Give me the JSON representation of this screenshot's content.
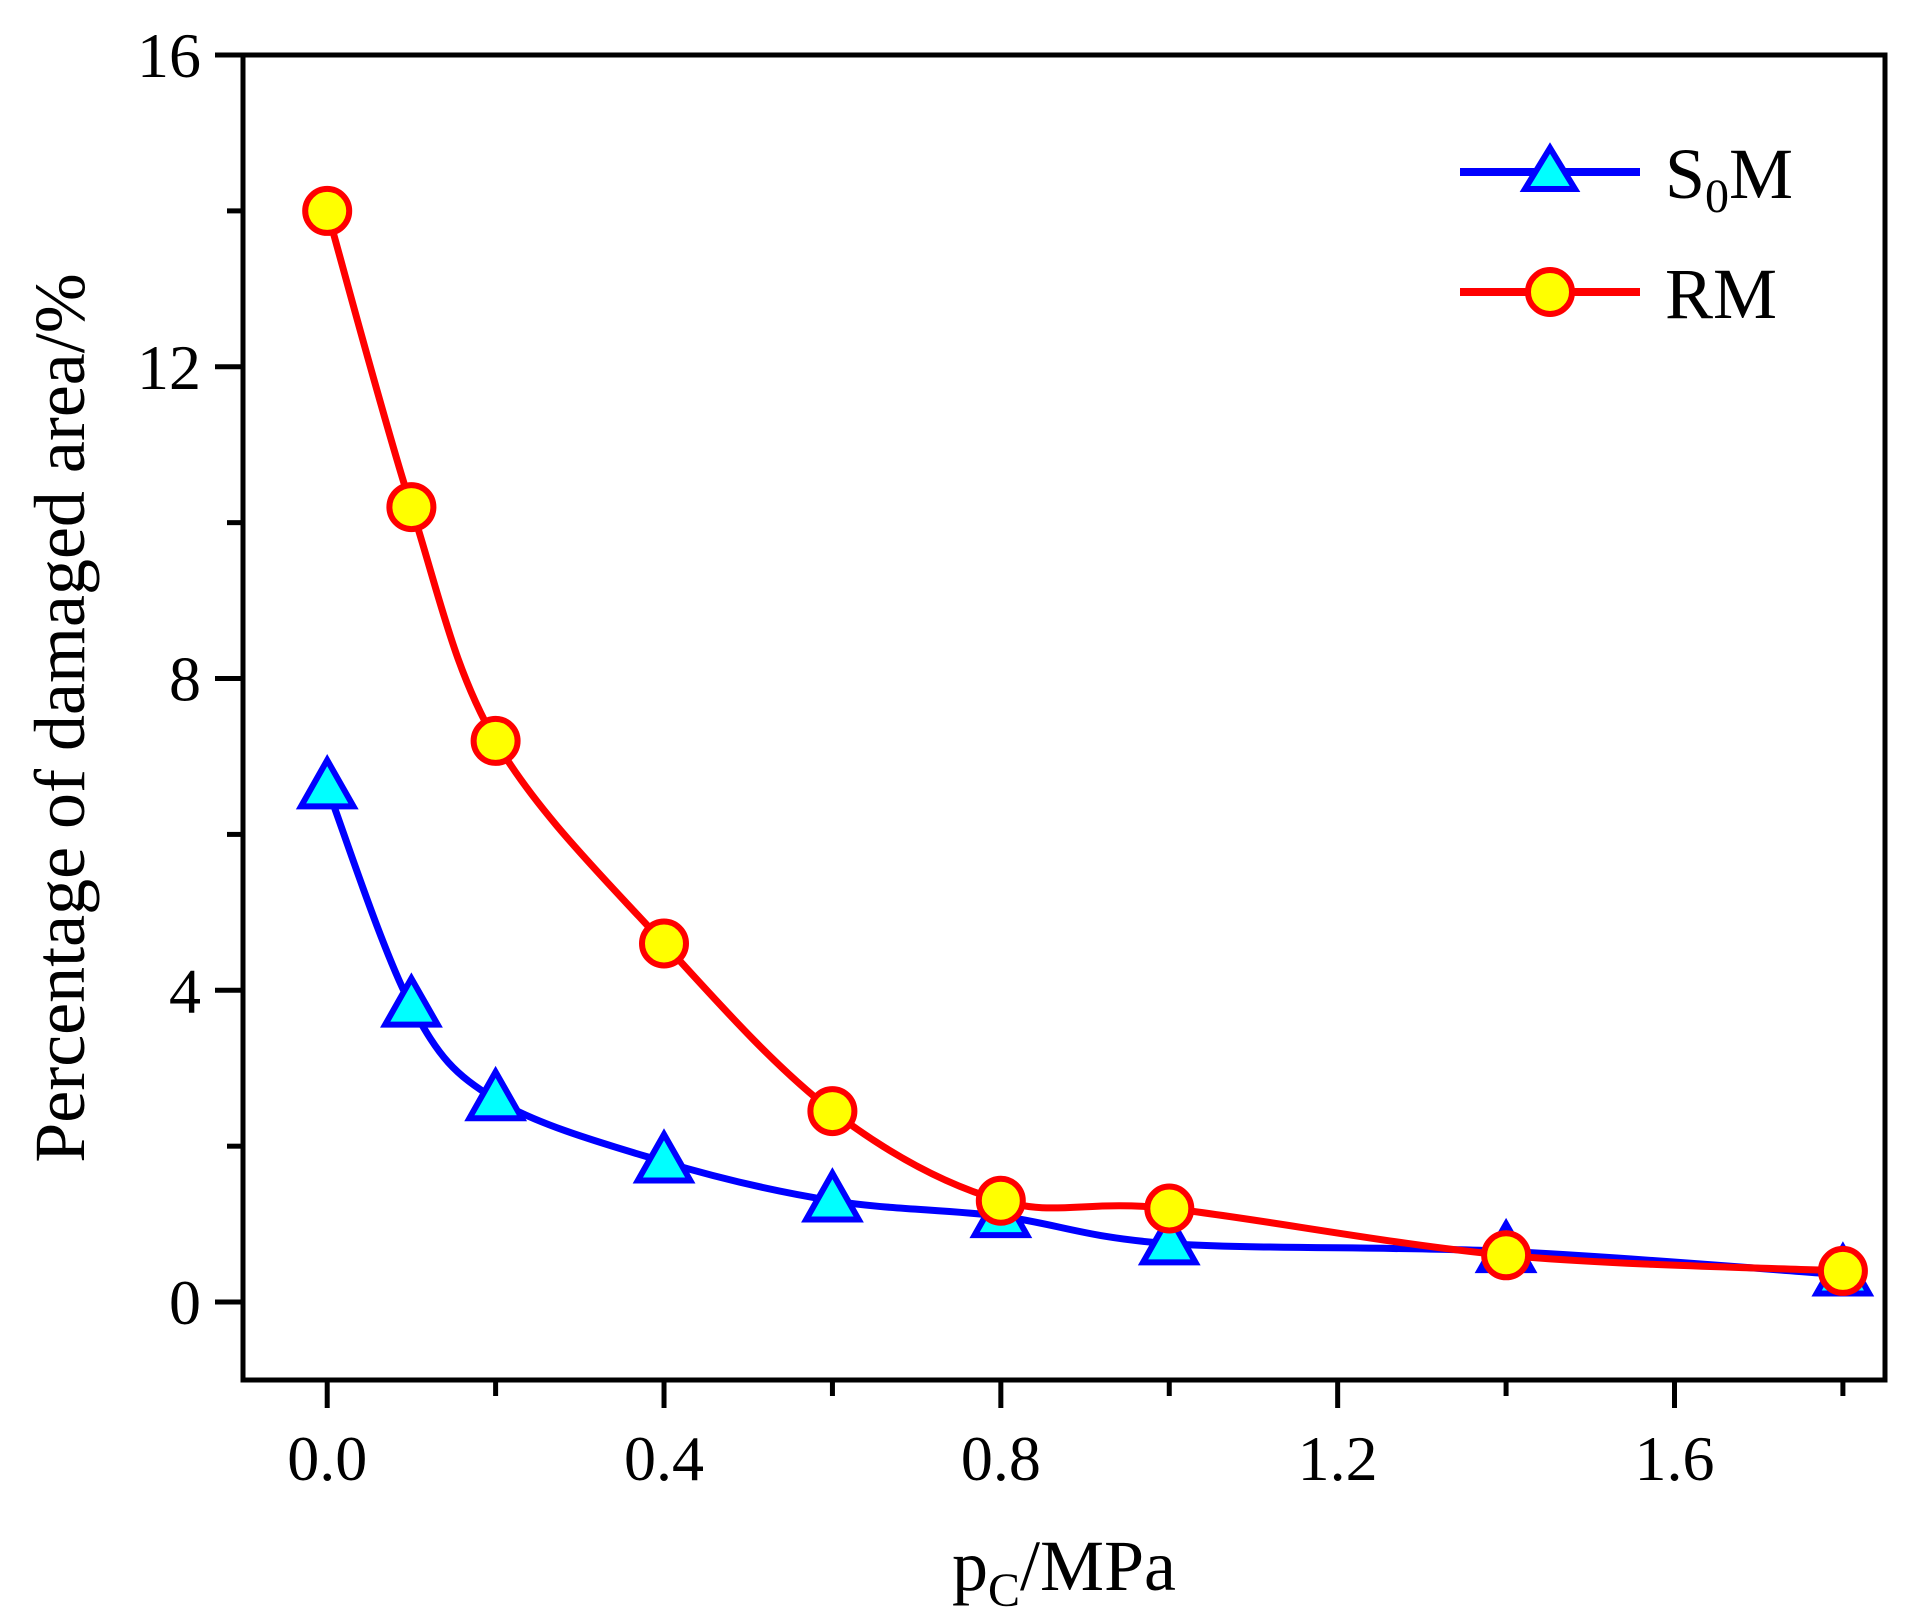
{
  "chart_data": {
    "type": "line",
    "title": "",
    "xlabel": "p",
    "xlabel_sub": "C",
    "xlabel_suffix": "/MPa",
    "ylabel": "Percentage of damaged area/%",
    "xlim": [
      -0.1,
      1.85
    ],
    "ylim": [
      -1,
      16
    ],
    "xticks": [
      0.0,
      0.4,
      0.8,
      1.2,
      1.6
    ],
    "xtick_labels": [
      "0.0",
      "0.4",
      "0.8",
      "1.2",
      "1.6"
    ],
    "xminor": [
      0.2,
      0.6,
      1.0,
      1.4,
      1.8
    ],
    "yticks": [
      0,
      4,
      8,
      12,
      16
    ],
    "ytick_labels": [
      "0",
      "4",
      "8",
      "12",
      "16"
    ],
    "yminor": [
      2,
      6,
      10,
      14
    ],
    "grid": false,
    "legend_position": "top-right",
    "series": [
      {
        "name": "S0M",
        "legend_main": "S",
        "legend_sub": "0",
        "legend_rest": "M",
        "marker": "triangle",
        "line_color": "#0000ff",
        "marker_fill": "#00ffff",
        "marker_edge": "#0000ff",
        "x": [
          0.0,
          0.1,
          0.2,
          0.4,
          0.6,
          0.8,
          1.0,
          1.4,
          1.8
        ],
        "y": [
          6.6,
          3.8,
          2.6,
          1.8,
          1.3,
          1.1,
          0.75,
          0.65,
          0.35
        ]
      },
      {
        "name": "RM",
        "legend_main": "RM",
        "legend_sub": "",
        "legend_rest": "",
        "marker": "circle",
        "line_color": "#ff0000",
        "marker_fill": "#ffff00",
        "marker_edge": "#ff0000",
        "x": [
          0.0,
          0.1,
          0.2,
          0.4,
          0.6,
          0.8,
          1.0,
          1.4,
          1.8
        ],
        "y": [
          14.0,
          10.2,
          7.2,
          4.6,
          2.45,
          1.3,
          1.2,
          0.6,
          0.4
        ]
      }
    ]
  }
}
